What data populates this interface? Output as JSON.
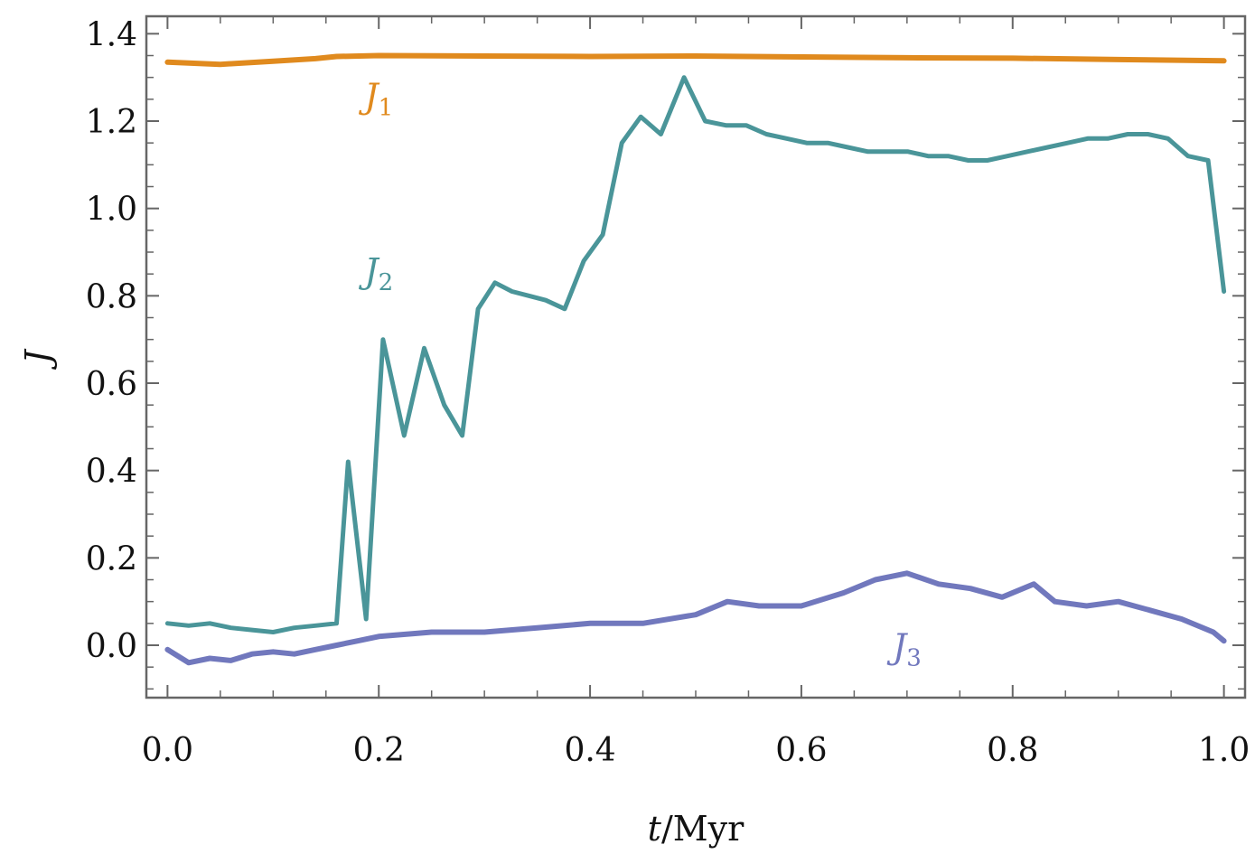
{
  "chart_data": {
    "type": "line",
    "xlabel": {
      "var": "t",
      "unit": "/Myr"
    },
    "ylabel": "J",
    "xlim": [
      -0.02,
      1.02
    ],
    "ylim": [
      -0.12,
      1.44
    ],
    "xticks": [
      0.0,
      0.2,
      0.4,
      0.6,
      0.8,
      1.0
    ],
    "xtick_labels": [
      "0.0",
      "0.2",
      "0.4",
      "0.6",
      "0.8",
      "1.0"
    ],
    "yticks": [
      0.0,
      0.2,
      0.4,
      0.6,
      0.8,
      1.0,
      1.2,
      1.4
    ],
    "ytick_labels": [
      "0.0",
      "0.2",
      "0.4",
      "0.6",
      "0.8",
      "1.0",
      "1.2",
      "1.4"
    ],
    "grid": false,
    "series": [
      {
        "name": "J",
        "name_sub": "1",
        "color": "#E08A1E",
        "label_at": {
          "x": 0.2,
          "y": 1.23
        },
        "x": [
          0.0,
          0.05,
          0.1,
          0.14,
          0.16,
          0.2,
          0.3,
          0.4,
          0.5,
          0.6,
          0.7,
          0.8,
          0.9,
          1.0
        ],
        "y": [
          1.335,
          1.33,
          1.337,
          1.343,
          1.348,
          1.35,
          1.349,
          1.348,
          1.349,
          1.347,
          1.345,
          1.344,
          1.341,
          1.338
        ]
      },
      {
        "name": "J",
        "name_sub": "2",
        "color": "#4A9599",
        "label_at": {
          "x": 0.2,
          "y": 0.83
        },
        "x": [
          0.0,
          0.02,
          0.04,
          0.06,
          0.08,
          0.1,
          0.12,
          0.14,
          0.16,
          0.171,
          0.188,
          0.204,
          0.224,
          0.243,
          0.262,
          0.279,
          0.294,
          0.31,
          0.326,
          0.342,
          0.358,
          0.376,
          0.394,
          0.412,
          0.43,
          0.448,
          0.467,
          0.489,
          0.509,
          0.529,
          0.548,
          0.567,
          0.586,
          0.605,
          0.625,
          0.644,
          0.663,
          0.682,
          0.701,
          0.72,
          0.739,
          0.758,
          0.776,
          0.795,
          0.814,
          0.833,
          0.852,
          0.871,
          0.89,
          0.909,
          0.928,
          0.947,
          0.966,
          0.985,
          1.0
        ],
        "y": [
          0.05,
          0.045,
          0.05,
          0.04,
          0.035,
          0.03,
          0.04,
          0.045,
          0.05,
          0.42,
          0.06,
          0.7,
          0.48,
          0.68,
          0.55,
          0.48,
          0.77,
          0.83,
          0.81,
          0.8,
          0.79,
          0.77,
          0.88,
          0.94,
          1.15,
          1.21,
          1.17,
          1.3,
          1.2,
          1.19,
          1.19,
          1.17,
          1.16,
          1.15,
          1.15,
          1.14,
          1.13,
          1.13,
          1.13,
          1.12,
          1.12,
          1.11,
          1.11,
          1.12,
          1.13,
          1.14,
          1.15,
          1.16,
          1.16,
          1.17,
          1.17,
          1.16,
          1.12,
          1.11,
          0.81
        ]
      },
      {
        "name": "J",
        "name_sub": "3",
        "color": "#7178BD",
        "label_at": {
          "x": 0.7,
          "y": -0.03
        },
        "x": [
          0.0,
          0.02,
          0.04,
          0.06,
          0.08,
          0.1,
          0.12,
          0.14,
          0.16,
          0.18,
          0.2,
          0.25,
          0.3,
          0.35,
          0.4,
          0.45,
          0.5,
          0.53,
          0.56,
          0.6,
          0.64,
          0.67,
          0.7,
          0.73,
          0.76,
          0.79,
          0.82,
          0.84,
          0.87,
          0.9,
          0.93,
          0.96,
          0.99,
          1.0
        ],
        "y": [
          -0.01,
          -0.04,
          -0.03,
          -0.035,
          -0.02,
          -0.015,
          -0.02,
          -0.01,
          0.0,
          0.01,
          0.02,
          0.03,
          0.03,
          0.04,
          0.05,
          0.05,
          0.07,
          0.1,
          0.09,
          0.09,
          0.12,
          0.15,
          0.165,
          0.14,
          0.13,
          0.11,
          0.14,
          0.1,
          0.09,
          0.1,
          0.08,
          0.06,
          0.03,
          0.01
        ]
      }
    ]
  }
}
